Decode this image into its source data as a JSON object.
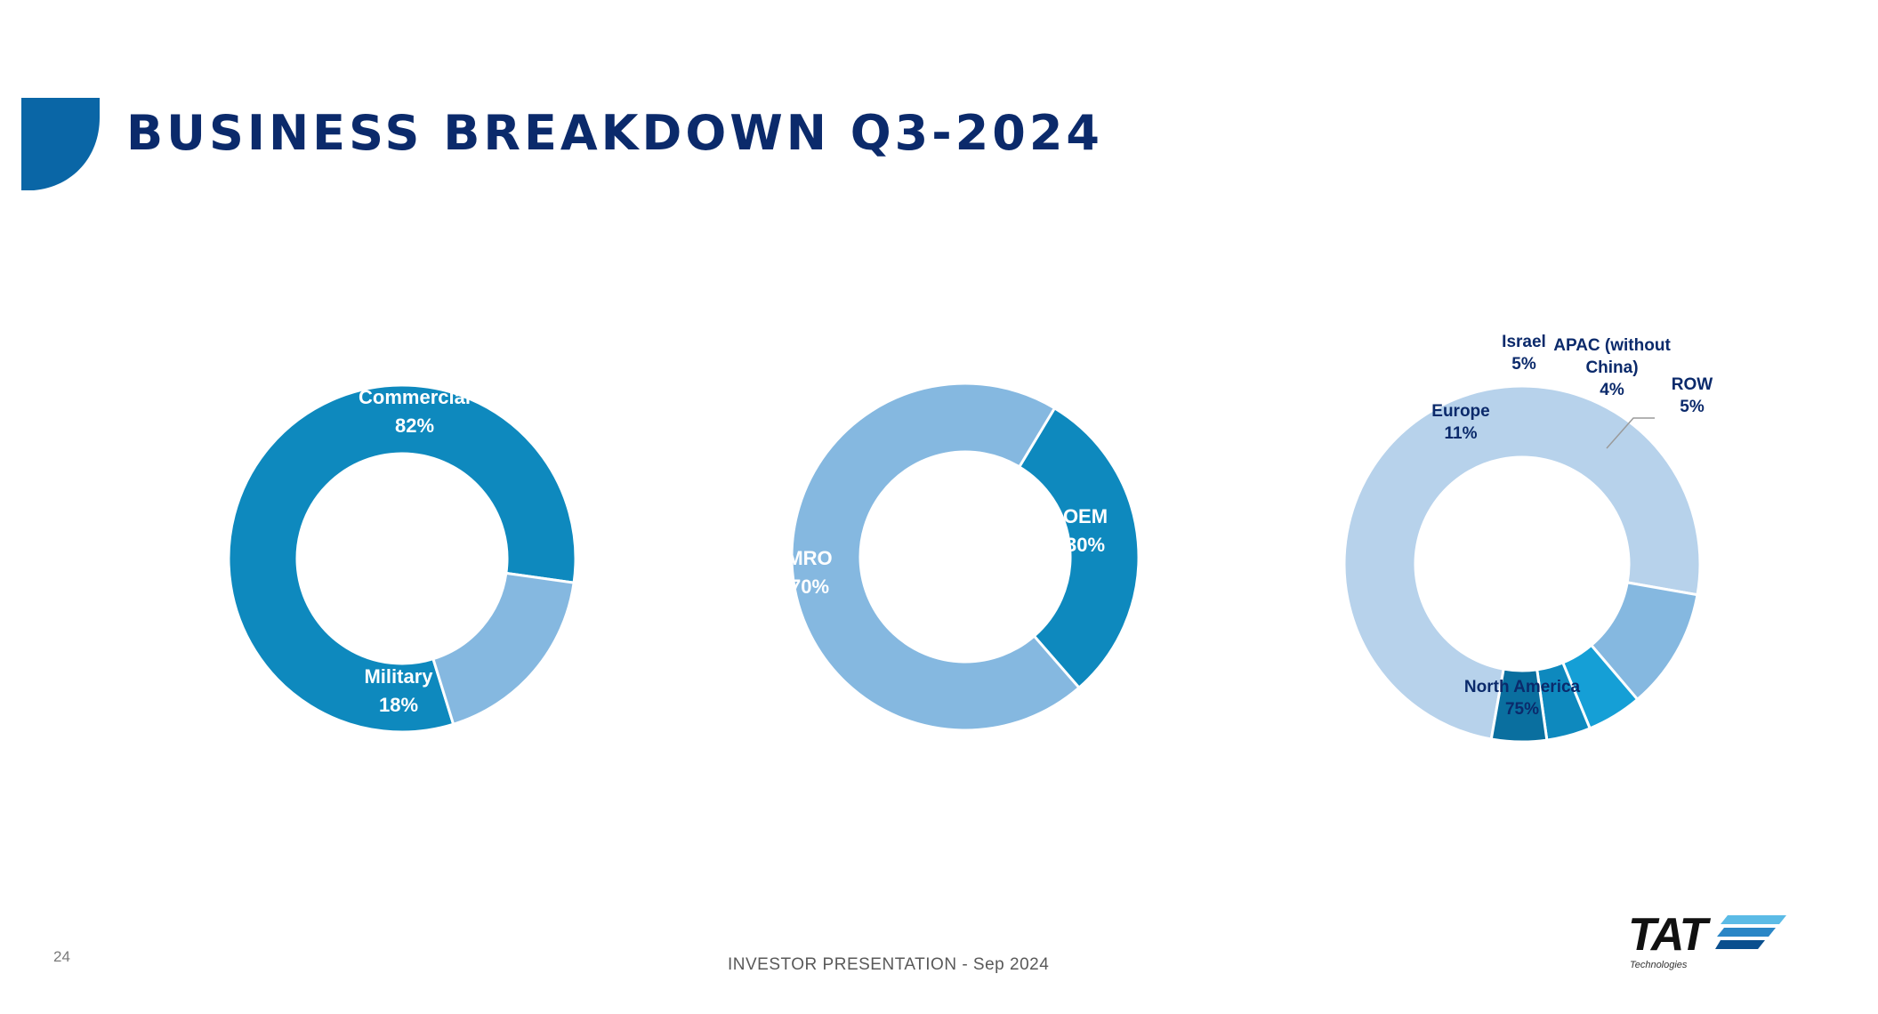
{
  "header": {
    "title": "BUSINESS BREAKDOWN Q3-2024",
    "accent_color": "#0a66a6"
  },
  "footer": {
    "page_number": "24",
    "text": "INVESTOR PRESENTATION - Sep 2024"
  },
  "logo": {
    "text": "TAT",
    "subtext": "Technologies",
    "stripe_colors": [
      "#5bbbe6",
      "#2a86c6",
      "#0a4f8e"
    ]
  },
  "chart_data": [
    {
      "type": "pie",
      "donut": true,
      "categories": [
        "Commercial",
        "Military"
      ],
      "values": [
        82,
        18
      ],
      "value_labels": [
        "82%",
        "18%"
      ],
      "colors": [
        "#0e89be",
        "#85b8e0"
      ],
      "label_colors": [
        "#ffffff",
        "#ffffff"
      ]
    },
    {
      "type": "pie",
      "donut": true,
      "categories": [
        "OEM",
        "MRO"
      ],
      "values": [
        30,
        70
      ],
      "value_labels": [
        "30%",
        "70%"
      ],
      "colors": [
        "#0e89be",
        "#85b8e0"
      ],
      "label_colors": [
        "#ffffff",
        "#ffffff"
      ]
    },
    {
      "type": "pie",
      "donut": true,
      "categories": [
        "North America",
        "Europe",
        "Israel",
        "APAC (without China)",
        "ROW"
      ],
      "values": [
        75,
        11,
        5,
        4,
        5
      ],
      "value_labels": [
        "75%",
        "11%",
        "5%",
        "4%",
        "5%"
      ],
      "colors": [
        "#b7d2eb",
        "#85b8e0",
        "#159fd6",
        "#0e89be",
        "#0a6f9f"
      ],
      "label_colors": [
        "#0b2a6b",
        "#0b2a6b",
        "#0b2a6b",
        "#0b2a6b",
        "#0b2a6b"
      ]
    }
  ]
}
